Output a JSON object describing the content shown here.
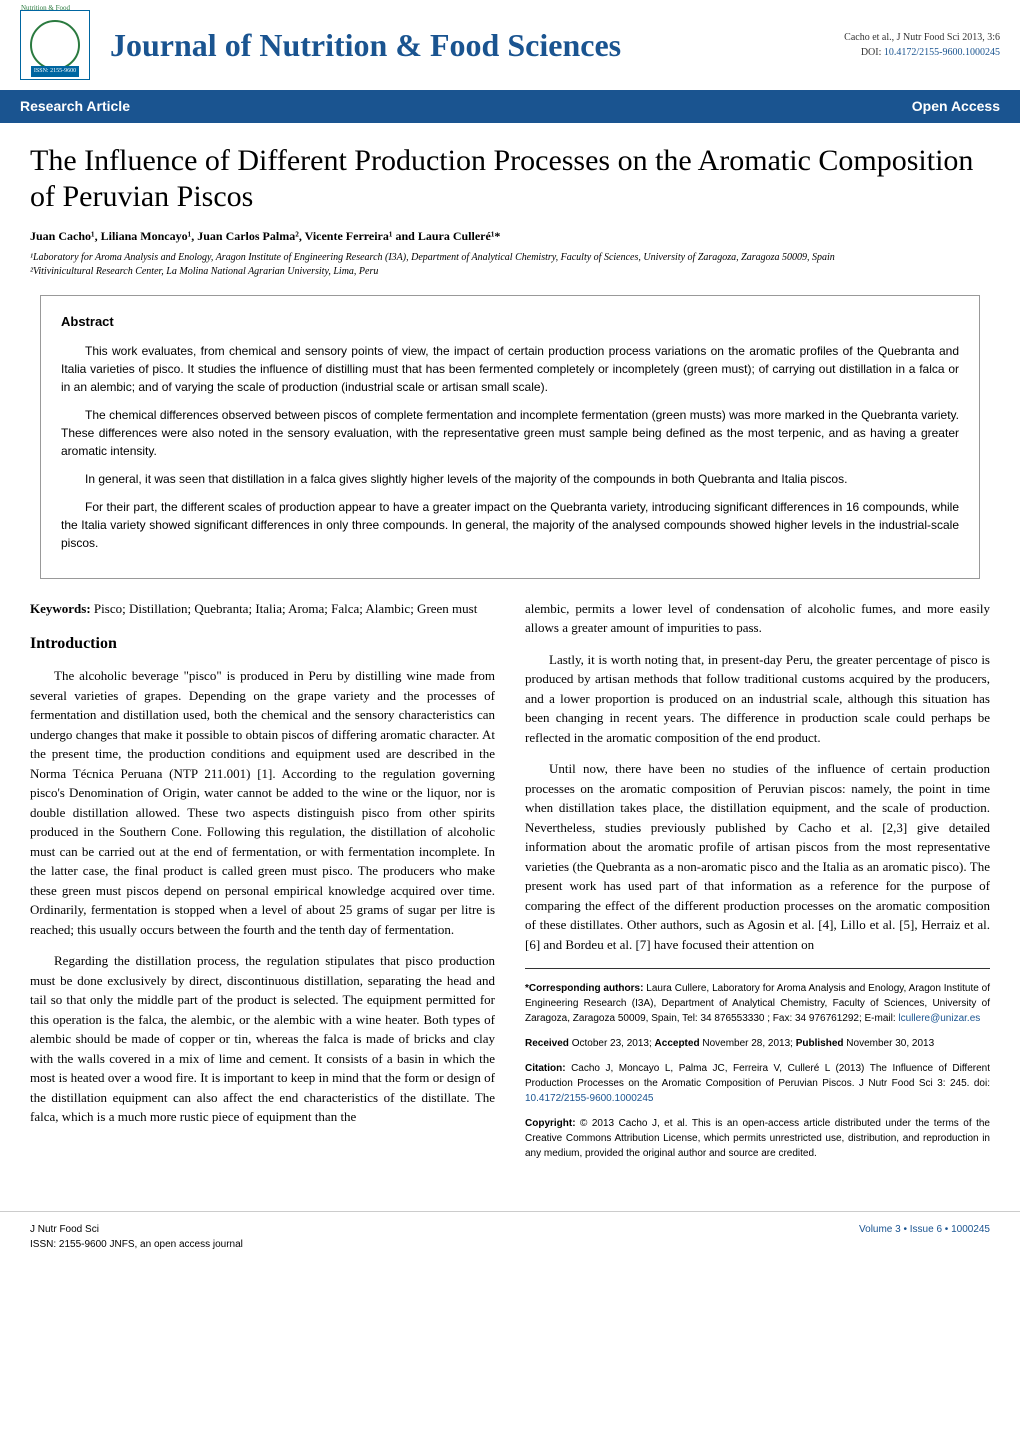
{
  "header": {
    "logo_issn": "ISSN: 2155-9600",
    "logo_top_text": "Nutrition & Food",
    "journal_title": "Journal of Nutrition & Food Sciences",
    "citation_line": "Cacho et al., J Nutr Food Sci 2013, 3:6",
    "doi_label": "DOI: ",
    "doi": "10.4172/2155-9600.1000245"
  },
  "banner": {
    "left": "Research Article",
    "right": "Open Access"
  },
  "article": {
    "title": "The Influence of Different Production Processes on the Aromatic Composition of Peruvian Piscos",
    "authors": "Juan Cacho¹, Liliana Moncayo¹, Juan Carlos Palma², Vicente Ferreira¹ and Laura Culleré¹*",
    "affil1": "¹Laboratory for Aroma Analysis and Enology, Aragon Institute of Engineering Research (I3A), Department of Analytical Chemistry, Faculty of Sciences, University of Zaragoza, Zaragoza 50009, Spain",
    "affil2": "²Vitivinicultural Research Center, La Molina National Agrarian University, Lima, Peru"
  },
  "abstract": {
    "heading": "Abstract",
    "p1": "This work evaluates, from chemical and sensory points of view, the impact of certain production process variations on the aromatic profiles of the Quebranta and Italia varieties of pisco. It studies the influence of distilling must that has been fermented completely or incompletely (green must); of carrying out distillation in a falca or in an alembic; and of varying the scale of production (industrial scale or artisan small scale).",
    "p2": "The chemical differences observed between piscos of complete fermentation and incomplete fermentation (green musts) was more marked in the Quebranta variety. These differences were also noted in the sensory evaluation, with the representative green must sample being defined as the most terpenic, and as having a greater aromatic intensity.",
    "p3": "In general, it was seen that distillation in a falca gives slightly higher levels of the majority of the compounds in both Quebranta and Italia piscos.",
    "p4": "For their part, the different scales of production appear to have a greater impact on the Quebranta variety, introducing significant differences in 16 compounds, while the Italia variety showed significant differences in only three compounds. In general, the majority of the analysed compounds showed higher levels in the industrial-scale piscos."
  },
  "keywords": {
    "label": "Keywords: ",
    "text": "Pisco; Distillation; Quebranta; Italia; Aroma; Falca; Alambic; Green must"
  },
  "intro": {
    "heading": "Introduction",
    "p1": "The alcoholic beverage \"pisco\" is produced in Peru by distilling wine made from several varieties of grapes. Depending on the grape variety and the processes of fermentation and distillation used, both the chemical and the sensory characteristics can undergo changes that make it possible to obtain piscos of differing aromatic character. At the present time, the production conditions and equipment used are described in the Norma Técnica Peruana (NTP 211.001) [1]. According to the regulation governing pisco's Denomination of Origin, water cannot be added to the wine or the liquor, nor is double distillation allowed. These two aspects distinguish pisco from other spirits produced in the Southern Cone. Following this regulation, the distillation of alcoholic must can be carried out at the end of fermentation, or with fermentation incomplete. In the latter case, the final product is called green must pisco. The producers who make these green must piscos depend on personal empirical knowledge acquired over time. Ordinarily, fermentation is stopped when a level of about 25 grams of sugar per litre is reached; this usually occurs between the fourth and the tenth day of fermentation.",
    "p2": "Regarding the distillation process, the regulation stipulates that pisco production must be done exclusively by direct, discontinuous distillation, separating the head and tail so that only the middle part of the product is selected. The equipment permitted for this operation is the falca, the alembic, or the alembic with a wine heater. Both types of alembic should be made of copper or tin, whereas the falca is made of bricks and clay with the walls covered in a mix of lime and cement. It consists of a basin in which the most is heated over a wood fire. It is important to keep in mind that the form or design of the distillation equipment can also affect the end characteristics of the distillate. The falca, which is a much more rustic piece of equipment than the"
  },
  "right_col": {
    "p1": "alembic, permits a lower level of condensation of alcoholic fumes, and more easily allows a greater amount of impurities to pass.",
    "p2": "Lastly, it is worth noting that, in present-day Peru, the greater percentage of pisco is produced by artisan methods that follow traditional customs acquired by the producers, and a lower proportion is produced on an industrial scale, although this situation has been changing in recent years. The difference in production scale could perhaps be reflected in the aromatic composition of the end product.",
    "p3": "Until now, there have been no studies of the influence of certain production processes on the aromatic composition of Peruvian piscos: namely, the point in time when distillation takes place, the distillation equipment, and the scale of production. Nevertheless, studies previously published by Cacho et al. [2,3] give detailed information about the aromatic profile of artisan piscos from the most representative varieties (the Quebranta as a non-aromatic pisco and the Italia as an aromatic pisco). The present work has used part of that information as a reference for the purpose of comparing the effect of the different production processes on the aromatic composition of these distillates. Other authors, such as Agosin et al. [4], Lillo et al. [5], Herraiz et al. [6] and Bordeu et al. [7] have focused their attention on"
  },
  "footer_box": {
    "corresponding_label": "*Corresponding authors: ",
    "corresponding": "Laura Cullere, Laboratory for Aroma Analysis and Enology, Aragon Institute of Engineering Research (I3A), Department of Analytical Chemistry, Faculty of Sciences, University of Zaragoza, Zaragoza 50009, Spain, Tel: 34 876553330 ; Fax: 34 976761292; E-mail: ",
    "email": "lcullere@unizar.es",
    "received_label": "Received ",
    "received": "October 23, 2013; ",
    "accepted_label": "Accepted ",
    "accepted": "November 28, 2013; ",
    "published_label": "Published ",
    "published": "November 30, 2013",
    "citation_label": "Citation: ",
    "citation": "Cacho J, Moncayo L, Palma JC, Ferreira V, Culleré L (2013) The Influence of Different Production Processes on the Aromatic Composition of Peruvian Piscos. J Nutr Food Sci 3: 245. doi: ",
    "citation_doi": "10.4172/2155-9600.1000245",
    "copyright_label": "Copyright: ",
    "copyright": "© 2013 Cacho J, et al. This is an open-access article distributed under the terms of the Creative Commons Attribution License, which permits unrestricted use, distribution, and reproduction in any medium, provided the original author and source are credited."
  },
  "page_footer": {
    "left_line1": "J Nutr Food Sci",
    "left_line2": "ISSN: 2155-9600 JNFS, an open access journal",
    "right": "Volume 3 • Issue 6 • 1000245"
  },
  "colors": {
    "banner_bg": "#1a5490",
    "journal_title": "#1a5490",
    "doi_link": "#1a5490"
  }
}
